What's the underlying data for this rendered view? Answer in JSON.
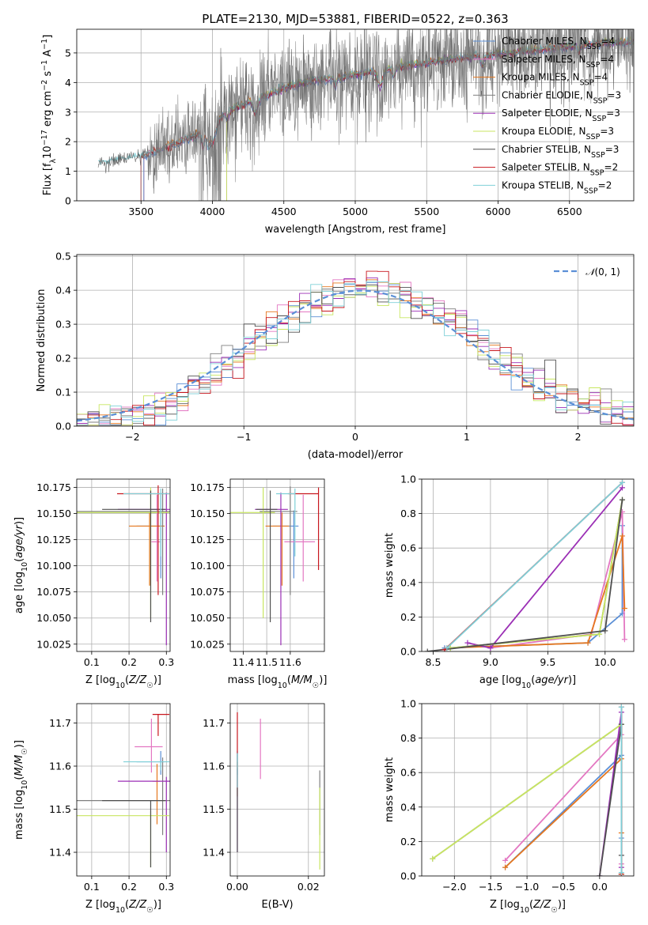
{
  "figure_title": "PLATE=2130, MJD=53881, FIBERID=0522, z=0.363",
  "series_styles": [
    {
      "name": "Chabrier MILES",
      "label": "Chabrier MILES, N",
      "sub": "SSP",
      "n": "=4",
      "color": "#5b8fd6"
    },
    {
      "name": "Salpeter MILES",
      "label": "Salpeter MILES, N",
      "sub": "SSP",
      "n": "=4",
      "color": "#e377c2"
    },
    {
      "name": "Kroupa MILES",
      "label": "Kroupa MILES, N",
      "sub": "SSP",
      "n": "=4",
      "color": "#e6771e"
    },
    {
      "name": "Chabrier ELODIE",
      "label": "Chabrier ELODIE, N",
      "sub": "SSP",
      "n": "=3",
      "color": "#7f7f7f"
    },
    {
      "name": "Salpeter ELODIE",
      "label": "Salpeter ELODIE, N",
      "sub": "SSP",
      "n": "=3",
      "color": "#9b2fb5"
    },
    {
      "name": "Kroupa ELODIE",
      "label": "Kroupa ELODIE, N",
      "sub": "SSP",
      "n": "=3",
      "color": "#c8e660"
    },
    {
      "name": "Chabrier STELIB",
      "label": "Chabrier STELIB, N",
      "sub": "SSP",
      "n": "=3",
      "color": "#4f4f4f"
    },
    {
      "name": "Salpeter STELIB",
      "label": "Salpeter STELIB, N",
      "sub": "SSP",
      "n": "=2",
      "color": "#c8171e"
    },
    {
      "name": "Kroupa STELIB",
      "label": "Kroupa STELIB, N",
      "sub": "SSP",
      "n": "=2",
      "color": "#7fd0d8"
    }
  ],
  "chart_data": [
    {
      "id": "spectrum",
      "type": "line",
      "xlabel": "wavelength [Angstrom, rest frame]",
      "ylabel": "Flux [f_λ 10^-17 erg cm^-2 s^-1 A^-1]",
      "xlim": [
        3050,
        6950
      ],
      "ylim": [
        0,
        5.8
      ],
      "xticks": [
        3500,
        4000,
        4500,
        5000,
        5500,
        6000,
        6500
      ],
      "yticks": [
        0,
        1,
        2,
        3,
        4,
        5
      ],
      "legend_position": "right",
      "observed_envelope": {
        "x": [
          3200,
          3500,
          3700,
          3950,
          4100,
          4300,
          4500,
          4700,
          4900,
          5100,
          5300,
          5500,
          5700,
          5900,
          6100,
          6300,
          6500,
          6700,
          6900
        ],
        "y": [
          1.25,
          1.5,
          1.85,
          2.3,
          3.0,
          3.4,
          3.8,
          4.05,
          4.15,
          4.35,
          4.5,
          4.65,
          4.8,
          4.9,
          5.0,
          5.1,
          5.2,
          5.3,
          5.35
        ]
      }
    },
    {
      "id": "residuals",
      "type": "histogram",
      "xlabel": "(data-model)/error",
      "ylabel": "Normed distribution",
      "xlim": [
        -2.5,
        2.5
      ],
      "ylim": [
        0,
        0.505
      ],
      "xticks": [
        -2,
        -1,
        0,
        1,
        2
      ],
      "yticks": [
        0.0,
        0.1,
        0.2,
        0.3,
        0.4,
        0.5
      ],
      "bins": 50,
      "reference_curve": {
        "name": "N(0,1)",
        "mean": 0.05,
        "sigma": 1.0,
        "style": "dashed"
      },
      "legend_position": "top-right"
    },
    {
      "id": "age_vs_Z",
      "type": "errorbar",
      "xlabel": "Z [log10(Z/Z☉)]",
      "ylabel": "age  [log10(age/yr)]",
      "xlim": [
        0.06,
        0.31
      ],
      "ylim": [
        10.018,
        10.183
      ],
      "xticks": [
        0.1,
        0.2,
        0.3
      ],
      "yticks": [
        10.025,
        10.05,
        10.075,
        10.1,
        10.125,
        10.15,
        10.175
      ],
      "points": [
        {
          "series": "Chabrier MILES",
          "x": 0.285,
          "xerr": [
            0.065,
            0.01
          ],
          "y": 10.138,
          "yerr": [
            0.05,
            0.03
          ]
        },
        {
          "series": "Salpeter MILES",
          "x": 0.275,
          "xerr": [
            0.015,
            0.008
          ],
          "y": 10.123,
          "yerr": [
            0.038,
            0.045
          ]
        },
        {
          "series": "Kroupa MILES",
          "x": 0.255,
          "xerr": [
            0.055,
            0.04
          ],
          "y": 10.138,
          "yerr": [
            0.057,
            0.013
          ]
        },
        {
          "series": "Chabrier ELODIE",
          "x": 0.29,
          "xerr": [
            0.235,
            0.025
          ],
          "y": 10.152,
          "yerr": [
            0.08,
            0.022
          ]
        },
        {
          "series": "Salpeter ELODIE",
          "x": 0.3,
          "xerr": [
            0.13,
            0.01
          ],
          "y": 10.154,
          "yerr": [
            0.13,
            0.016
          ]
        },
        {
          "series": "Kroupa ELODIE",
          "x": 0.258,
          "xerr": [
            0.198,
            0.05
          ],
          "y": 10.151,
          "yerr": [
            0.101,
            0.024
          ]
        },
        {
          "series": "Chabrier STELIB",
          "x": 0.258,
          "xerr": [
            0.13,
            0.04
          ],
          "y": 10.154,
          "yerr": [
            0.108,
            0.018
          ]
        },
        {
          "series": "Salpeter STELIB",
          "x": 0.278,
          "xerr": [
            0.11,
            0.03
          ],
          "y": 10.169,
          "yerr": [
            0.097,
            0.008
          ]
        },
        {
          "series": "Kroupa STELIB",
          "x": 0.285,
          "xerr": [
            0.1,
            0.023
          ],
          "y": 10.169,
          "yerr": [
            0.06,
            0.005
          ]
        }
      ]
    },
    {
      "id": "age_vs_mass",
      "type": "errorbar",
      "xlabel": "mass [log10(M/M☉)]",
      "ylabel": "",
      "xlim": [
        11.345,
        11.745
      ],
      "ylim": [
        10.018,
        10.183
      ],
      "xticks": [
        11.4,
        11.5,
        11.6
      ],
      "yticks": [
        10.025,
        10.05,
        10.075,
        10.1,
        10.125,
        10.15,
        10.175
      ],
      "points": [
        {
          "series": "Chabrier MILES",
          "x": 11.615,
          "xerr": [
            0.09,
            0.02
          ],
          "y": 10.138,
          "yerr": [
            0.05,
            0.015
          ]
        },
        {
          "series": "Salpeter MILES",
          "x": 11.655,
          "xerr": [
            0.08,
            0.05
          ],
          "y": 10.123,
          "yerr": [
            0.038,
            0.045
          ]
        },
        {
          "series": "Kroupa MILES",
          "x": 11.565,
          "xerr": [
            0.07,
            0.03
          ],
          "y": 10.138,
          "yerr": [
            0.057,
            0.013
          ]
        },
        {
          "series": "Chabrier ELODIE",
          "x": 11.6,
          "xerr": [
            0.13,
            0.03
          ],
          "y": 10.152,
          "yerr": [
            0.08,
            0.024
          ]
        },
        {
          "series": "Salpeter ELODIE",
          "x": 11.56,
          "xerr": [
            0.11,
            0.03
          ],
          "y": 10.154,
          "yerr": [
            0.13,
            0.016
          ]
        },
        {
          "series": "Kroupa ELODIE",
          "x": 11.485,
          "xerr": [
            0.17,
            0.05
          ],
          "y": 10.151,
          "yerr": [
            0.101,
            0.024
          ]
        },
        {
          "series": "Chabrier STELIB",
          "x": 11.515,
          "xerr": [
            0.06,
            0.03
          ],
          "y": 10.154,
          "yerr": [
            0.108,
            0.018
          ]
        },
        {
          "series": "Salpeter STELIB",
          "x": 11.72,
          "xerr": [
            0.13,
            0.0
          ],
          "y": 10.169,
          "yerr": [
            0.073,
            0.006
          ]
        },
        {
          "series": "Kroupa STELIB",
          "x": 11.62,
          "xerr": [
            0.08,
            0.0
          ],
          "y": 10.169,
          "yerr": [
            0.06,
            0.005
          ]
        }
      ]
    },
    {
      "id": "weight_vs_age",
      "type": "line",
      "xlabel": "age  [log10(age/yr)]",
      "ylabel": "mass weight",
      "xlim": [
        8.4,
        10.25
      ],
      "ylim": [
        0.0,
        1.0
      ],
      "xticks": [
        8.5,
        9.0,
        9.5,
        10.0
      ],
      "yticks": [
        0.0,
        0.2,
        0.4,
        0.6,
        0.8,
        1.0
      ],
      "grid": true,
      "series": [
        {
          "name": "Chabrier MILES",
          "x": [
            8.6,
            9.85,
            10.15,
            10.15
          ],
          "y": [
            0.02,
            0.05,
            0.22,
            0.73
          ]
        },
        {
          "name": "Salpeter MILES",
          "x": [
            9.0,
            9.88,
            10.15,
            10.17
          ],
          "y": [
            0.02,
            0.1,
            0.81,
            0.07
          ]
        },
        {
          "name": "Kroupa MILES",
          "x": [
            8.62,
            9.85,
            10.15,
            10.17
          ],
          "y": [
            0.02,
            0.05,
            0.67,
            0.25
          ]
        },
        {
          "name": "Chabrier ELODIE",
          "x": [
            8.65,
            9.95,
            10.15
          ],
          "y": [
            0.02,
            0.1,
            0.88
          ]
        },
        {
          "name": "Salpeter ELODIE",
          "x": [
            8.8,
            9.0,
            10.15
          ],
          "y": [
            0.05,
            0.02,
            0.95
          ]
        },
        {
          "name": "Kroupa ELODIE",
          "x": [
            8.65,
            9.95,
            10.15
          ],
          "y": [
            0.02,
            0.1,
            0.88
          ]
        },
        {
          "name": "Chabrier STELIB",
          "x": [
            8.45,
            10.0,
            10.15
          ],
          "y": [
            0.0,
            0.12,
            0.88
          ]
        },
        {
          "name": "Salpeter STELIB",
          "x": [
            8.6,
            10.15
          ],
          "y": [
            0.01,
            0.98
          ]
        },
        {
          "name": "Kroupa STELIB",
          "x": [
            8.62,
            10.15
          ],
          "y": [
            0.02,
            0.98
          ]
        }
      ]
    },
    {
      "id": "mass_vs_Z",
      "type": "errorbar",
      "xlabel": "Z [log10(Z/Z☉)]",
      "ylabel": "mass [log10(M/M☉)]",
      "xlim": [
        0.06,
        0.31
      ],
      "ylim": [
        11.345,
        11.745
      ],
      "xticks": [
        0.1,
        0.2,
        0.3
      ],
      "yticks": [
        11.4,
        11.5,
        11.6,
        11.7
      ],
      "points": [
        {
          "series": "Chabrier MILES",
          "x": 0.285,
          "xerr": [
            0.065,
            0.01
          ],
          "y": 11.61,
          "yerr": [
            0.03,
            0.025
          ]
        },
        {
          "series": "Salpeter MILES",
          "x": 0.26,
          "xerr": [
            0.045,
            0.03
          ],
          "y": 11.645,
          "yerr": [
            0.06,
            0.065
          ]
        },
        {
          "series": "Kroupa MILES",
          "x": 0.275,
          "xerr": [
            0.012,
            0.008
          ],
          "y": 11.565,
          "yerr": [
            0.1,
            0.04
          ]
        },
        {
          "series": "Chabrier ELODIE",
          "x": 0.29,
          "xerr": [
            0.235,
            0.02
          ],
          "y": 11.52,
          "yerr": [
            0.08,
            0.1
          ]
        },
        {
          "series": "Salpeter ELODIE",
          "x": 0.3,
          "xerr": [
            0.13,
            0.01
          ],
          "y": 11.565,
          "yerr": [
            0.165,
            0.01
          ]
        },
        {
          "series": "Kroupa ELODIE",
          "x": 0.258,
          "xerr": [
            0.198,
            0.05
          ],
          "y": 11.485,
          "yerr": [
            0.12,
            0.01
          ]
        },
        {
          "series": "Chabrier STELIB",
          "x": 0.258,
          "xerr": [
            0.13,
            0.04
          ],
          "y": 11.52,
          "yerr": [
            0.155,
            0.0
          ]
        },
        {
          "series": "Salpeter STELIB",
          "x": 0.278,
          "xerr": [
            0.015,
            0.03
          ],
          "y": 11.72,
          "yerr": [
            0.05,
            0.0
          ]
        },
        {
          "series": "Kroupa STELIB",
          "x": 0.285,
          "xerr": [
            0.1,
            0.023
          ],
          "y": 11.61,
          "yerr": [
            0.02,
            0.0
          ]
        }
      ]
    },
    {
      "id": "mass_vs_EBV",
      "type": "errorbar",
      "xlabel": "E(B-V)",
      "ylabel": "",
      "xlim": [
        -0.002,
        0.0245
      ],
      "ylim": [
        11.345,
        11.745
      ],
      "xticks": [
        0.0,
        0.02
      ],
      "xticklabels": [
        "0.00",
        "0.02"
      ],
      "yticks": [
        11.4,
        11.5,
        11.6,
        11.7
      ],
      "points": [
        {
          "series": "Chabrier MILES",
          "x": 0.0,
          "y": 11.61,
          "yerr": [
            0.03,
            0.025
          ]
        },
        {
          "series": "Salpeter MILES",
          "x": 0.0065,
          "y": 11.64,
          "yerr": [
            0.07,
            0.07
          ]
        },
        {
          "series": "Kroupa MILES",
          "x": 0.0,
          "y": 11.57,
          "yerr": [
            0.04,
            0.04
          ]
        },
        {
          "series": "Chabrier ELODIE",
          "x": 0.0232,
          "y": 11.52,
          "yerr": [
            0.08,
            0.07
          ]
        },
        {
          "series": "Salpeter ELODIE",
          "x": 0.0,
          "y": 11.565,
          "yerr": [
            0.165,
            0.03
          ]
        },
        {
          "series": "Kroupa ELODIE",
          "x": 0.0232,
          "y": 11.48,
          "yerr": [
            0.12,
            0.07
          ]
        },
        {
          "series": "Chabrier STELIB",
          "x": 0.0,
          "y": 11.52,
          "yerr": [
            0.12,
            0.11
          ]
        },
        {
          "series": "Salpeter STELIB",
          "x": 0.0,
          "y": 11.65,
          "yerr": [
            0.1,
            0.075
          ]
        },
        {
          "series": "Kroupa STELIB",
          "x": 0.0,
          "y": 11.61,
          "yerr": [
            0.06,
            0.02
          ]
        }
      ]
    },
    {
      "id": "weight_vs_Z",
      "type": "line",
      "xlabel": "Z [log10(Z/Z☉)]",
      "ylabel": "mass weight",
      "xlim": [
        -2.45,
        0.47
      ],
      "ylim": [
        0.0,
        1.0
      ],
      "xticks": [
        -2.0,
        -1.5,
        -1.0,
        -0.5,
        0.0
      ],
      "yticks": [
        0.0,
        0.2,
        0.4,
        0.6,
        0.8,
        1.0
      ],
      "grid": true,
      "series": [
        {
          "name": "Chabrier MILES",
          "x": [
            -1.3,
            0.3,
            0.3,
            0.3
          ],
          "y": [
            0.05,
            0.7,
            0.22,
            0.01
          ]
        },
        {
          "name": "Salpeter MILES",
          "x": [
            -1.3,
            0.3,
            0.3,
            0.3
          ],
          "y": [
            0.09,
            0.82,
            0.07,
            0.01
          ]
        },
        {
          "name": "Kroupa MILES",
          "x": [
            -1.3,
            0.3,
            0.3,
            0.3
          ],
          "y": [
            0.05,
            0.68,
            0.25,
            0.01
          ]
        },
        {
          "name": "Chabrier ELODIE",
          "x": [
            -2.3,
            0.3,
            0.3
          ],
          "y": [
            0.1,
            0.88,
            0.01
          ]
        },
        {
          "name": "Salpeter ELODIE",
          "x": [
            0.0,
            0.3,
            0.3
          ],
          "y": [
            0.0,
            0.95,
            0.05
          ]
        },
        {
          "name": "Kroupa ELODIE",
          "x": [
            -2.3,
            0.3,
            0.3
          ],
          "y": [
            0.1,
            0.88,
            0.01
          ]
        },
        {
          "name": "Chabrier STELIB",
          "x": [
            0.0,
            0.3,
            0.3
          ],
          "y": [
            0.0,
            0.88,
            0.12
          ]
        },
        {
          "name": "Salpeter STELIB",
          "x": [
            0.3,
            0.3
          ],
          "y": [
            0.01,
            0.98
          ]
        },
        {
          "name": "Kroupa STELIB",
          "x": [
            0.3,
            0.3
          ],
          "y": [
            0.02,
            0.98
          ]
        }
      ]
    }
  ]
}
